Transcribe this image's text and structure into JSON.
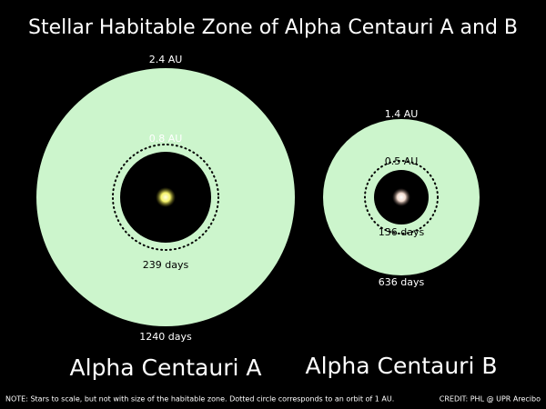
{
  "title": "Stellar Habitable Zone of Alpha Centauri A and B",
  "systems": [
    {
      "name": "Alpha Centauri A",
      "outer_edge": "2.4 AU",
      "inner_edge": "0.8 AU",
      "inner_period": "239 days",
      "outer_period": "1240 days"
    },
    {
      "name": "Alpha Centauri B",
      "outer_edge": "1.4 AU",
      "inner_edge": "0.5 AU",
      "inner_period": "136 days",
      "outer_period": "636 days"
    }
  ],
  "note": "NOTE: Stars to scale, but not with size of the habitable zone. Dotted circle corresponds to an orbit of 1 AU.",
  "credit": "CREDIT: PHL @ UPR Arecibo"
}
